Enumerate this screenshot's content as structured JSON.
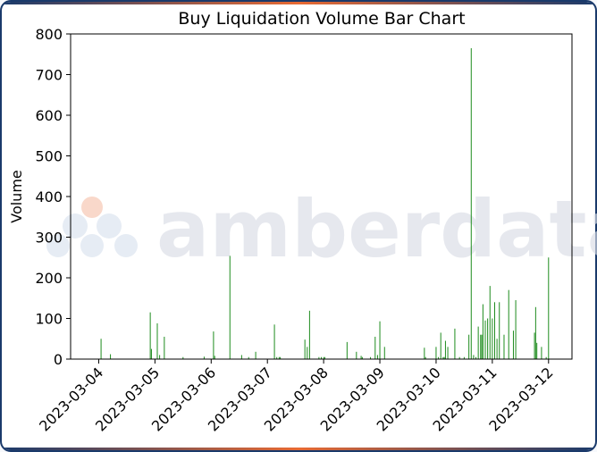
{
  "colors": {
    "bar": "#1e8c1e",
    "frame": "#1a3a6b",
    "watermark": "#d9dde6",
    "watermark_accent": "#f6c7b3"
  },
  "watermark": {
    "text": "amberdata"
  },
  "chart_data": {
    "type": "bar",
    "title": "Buy Liquidation Volume Bar Chart",
    "xlabel": "",
    "ylabel": "Volume",
    "ylim": [
      0,
      800
    ],
    "yticks": [
      0,
      100,
      200,
      300,
      400,
      500,
      600,
      700,
      800
    ],
    "xlim": [
      "2023-03-03 12:00",
      "2023-03-12 10:00"
    ],
    "xticks": [
      "2023-03-04",
      "2023-03-05",
      "2023-03-06",
      "2023-03-07",
      "2023-03-08",
      "2023-03-09",
      "2023-03-10",
      "2023-03-11",
      "2023-03-12"
    ],
    "grid": false,
    "legend": "none",
    "series": [
      {
        "x": [
          "2023-03-04 01:00",
          "2023-03-04 05:00",
          "2023-03-04 22:00",
          "2023-03-04 22:30",
          "2023-03-05 01:00",
          "2023-03-05 02:00",
          "2023-03-05 04:00",
          "2023-03-05 12:00",
          "2023-03-05 21:00",
          "2023-03-06 01:00",
          "2023-03-06 01:30",
          "2023-03-06 08:00",
          "2023-03-06 13:00",
          "2023-03-06 16:00",
          "2023-03-06 19:00",
          "2023-03-07 03:00",
          "2023-03-07 04:00",
          "2023-03-07 05:00",
          "2023-03-07 05:30",
          "2023-03-07 16:00",
          "2023-03-07 17:00",
          "2023-03-07 18:00",
          "2023-03-07 22:00",
          "2023-03-07 23:00",
          "2023-03-08 00:00",
          "2023-03-08 00:30",
          "2023-03-08 10:00",
          "2023-03-08 14:00",
          "2023-03-08 16:00",
          "2023-03-08 16:30",
          "2023-03-08 20:00",
          "2023-03-08 22:00",
          "2023-03-08 23:00",
          "2023-03-09 00:00",
          "2023-03-09 02:00",
          "2023-03-09 19:00",
          "2023-03-09 19:30",
          "2023-03-10 00:00",
          "2023-03-10 01:00",
          "2023-03-10 02:00",
          "2023-03-10 03:00",
          "2023-03-10 03:30",
          "2023-03-10 04:00",
          "2023-03-10 05:00",
          "2023-03-10 08:00",
          "2023-03-10 10:00",
          "2023-03-10 12:00",
          "2023-03-10 14:00",
          "2023-03-10 15:00",
          "2023-03-10 16:00",
          "2023-03-10 17:00",
          "2023-03-10 18:00",
          "2023-03-10 19:00",
          "2023-03-10 19:30",
          "2023-03-10 20:00",
          "2023-03-10 21:00",
          "2023-03-10 22:00",
          "2023-03-10 23:00",
          "2023-03-11 00:00",
          "2023-03-11 01:00",
          "2023-03-11 02:00",
          "2023-03-11 03:00",
          "2023-03-11 05:00",
          "2023-03-11 07:00",
          "2023-03-11 09:00",
          "2023-03-11 10:00",
          "2023-03-11 18:00",
          "2023-03-11 18:30",
          "2023-03-11 19:00",
          "2023-03-11 21:00",
          "2023-03-11 23:00",
          "2023-03-12 00:00"
        ],
        "values": [
          50,
          12,
          115,
          25,
          88,
          10,
          55,
          5,
          6,
          68,
          8,
          254,
          10,
          5,
          18,
          85,
          5,
          5,
          5,
          48,
          30,
          119,
          5,
          5,
          5,
          5,
          42,
          18,
          8,
          5,
          5,
          55,
          10,
          93,
          30,
          28,
          5,
          30,
          5,
          65,
          5,
          5,
          45,
          30,
          75,
          5,
          5,
          60,
          765,
          10,
          5,
          80,
          60,
          60,
          135,
          95,
          100,
          180,
          100,
          140,
          50,
          140,
          60,
          170,
          70,
          145,
          65,
          128,
          40,
          30,
          5,
          250
        ]
      }
    ]
  }
}
